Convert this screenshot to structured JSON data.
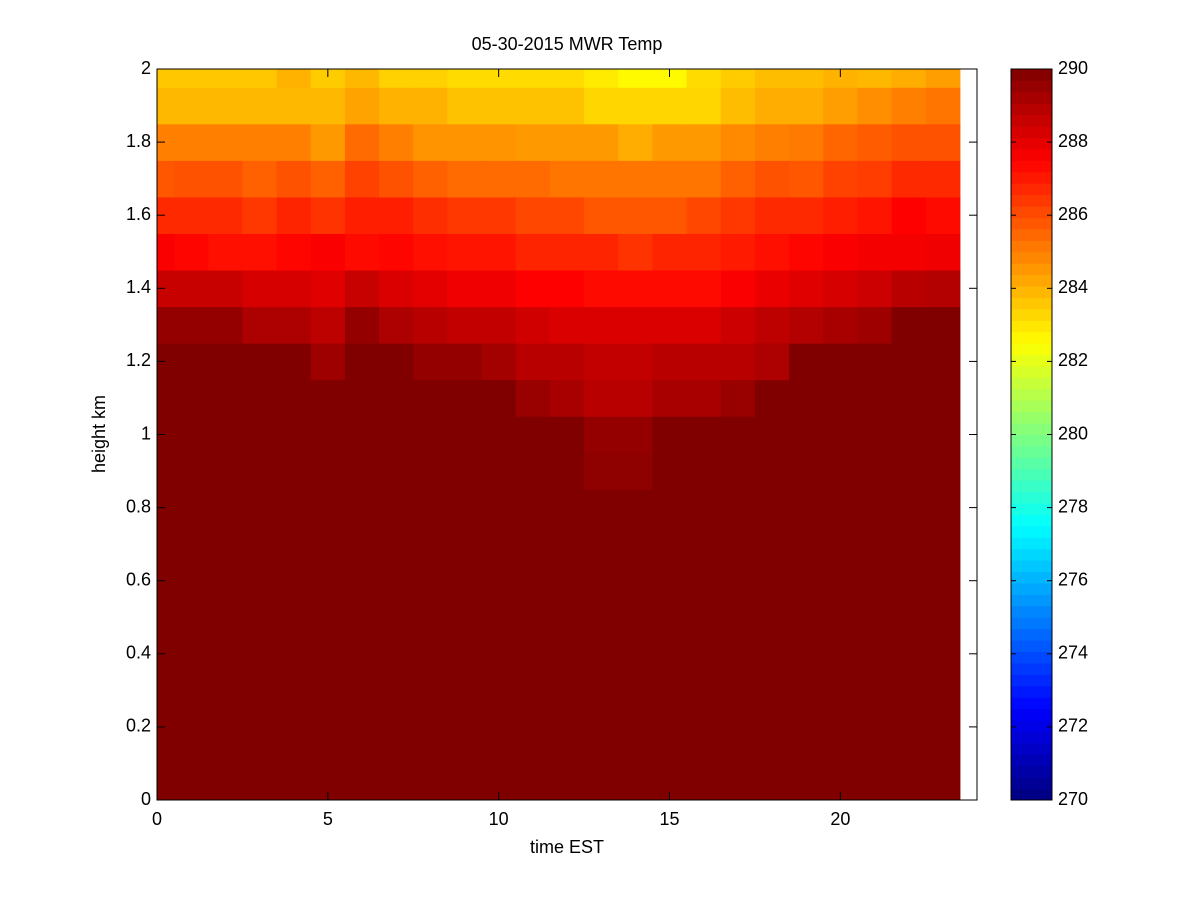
{
  "chart_data": {
    "type": "heatmap",
    "title": "05-30-2015 MWR Temp",
    "xlabel": "time EST",
    "ylabel": "height km",
    "colormap": "jet",
    "x": [
      0,
      1,
      2,
      3,
      4,
      5,
      6,
      7,
      8,
      9,
      10,
      11,
      12,
      13,
      14,
      15,
      16,
      17,
      18,
      19,
      20,
      21,
      22,
      23
    ],
    "y": [
      0,
      0.1,
      0.2,
      0.3,
      0.4,
      0.5,
      0.6,
      0.7,
      0.8,
      0.9,
      1.0,
      1.1,
      1.2,
      1.3,
      1.4,
      1.5,
      1.6,
      1.7,
      1.8,
      1.9,
      2.0
    ],
    "z": [
      [
        290,
        290,
        290,
        290,
        290,
        290,
        290,
        290,
        290,
        290,
        290,
        290,
        290,
        290,
        290,
        290,
        290,
        290,
        290,
        290,
        290,
        290,
        290,
        290
      ],
      [
        290,
        290,
        290,
        290,
        290,
        290,
        290,
        290,
        290,
        290,
        290,
        290,
        290,
        290,
        290,
        290,
        290,
        290,
        290,
        290,
        290,
        290,
        290,
        290
      ],
      [
        290,
        290,
        290,
        290,
        290,
        290,
        290,
        290,
        290,
        290,
        290,
        290,
        290,
        290,
        290,
        290,
        290,
        290,
        290,
        290,
        290,
        290,
        290,
        290
      ],
      [
        290,
        290,
        290,
        290,
        290,
        290,
        290,
        290,
        290,
        290,
        290,
        290,
        290,
        290,
        290,
        290,
        290,
        290,
        290,
        290,
        290,
        290,
        290,
        290
      ],
      [
        290,
        290,
        290,
        290,
        290,
        290,
        290,
        290,
        290,
        290,
        290,
        290,
        290,
        290,
        290,
        290,
        290,
        290,
        290,
        290,
        290,
        290,
        290,
        290
      ],
      [
        290,
        290,
        290,
        290,
        290,
        290,
        290,
        290,
        290,
        290,
        290,
        290,
        290,
        290,
        290,
        290,
        290,
        290,
        290,
        290,
        290,
        290,
        290,
        290
      ],
      [
        290,
        290,
        290,
        290,
        290,
        290,
        290,
        290,
        290,
        290,
        290,
        290,
        290,
        290,
        290,
        290,
        290,
        290,
        290,
        290,
        290,
        290,
        290,
        290
      ],
      [
        290,
        290,
        290,
        290,
        290,
        290,
        290,
        290,
        290,
        290,
        290,
        290,
        290,
        290,
        290,
        290,
        290,
        290,
        290,
        290,
        290,
        290,
        290,
        290
      ],
      [
        290,
        290,
        290,
        290,
        290,
        290,
        290,
        290,
        290,
        290,
        290,
        290,
        290,
        290,
        290,
        290,
        290,
        290,
        290,
        290,
        290,
        290,
        290,
        290
      ],
      [
        290,
        290,
        290,
        290,
        290,
        290,
        290,
        290,
        290,
        290,
        290,
        290,
        290,
        289.7,
        289.7,
        290,
        290,
        290,
        290,
        290,
        290,
        290,
        290,
        290
      ],
      [
        290,
        290,
        290,
        290,
        290,
        290,
        290,
        290,
        290,
        290,
        290,
        290,
        290,
        289.6,
        289.6,
        290,
        290,
        290,
        290,
        290,
        290,
        290,
        290,
        290
      ],
      [
        290,
        290,
        290,
        290,
        290,
        290,
        290,
        290,
        290,
        290,
        290,
        289.5,
        289.2,
        288.9,
        288.9,
        289.2,
        289.2,
        289.5,
        290,
        290,
        290,
        290,
        290,
        290
      ],
      [
        290,
        290,
        290,
        290,
        290,
        289.4,
        290,
        290,
        289.6,
        289.6,
        289.3,
        288.9,
        288.9,
        288.7,
        288.7,
        288.9,
        288.9,
        288.9,
        289.1,
        290,
        290,
        290,
        290,
        290
      ],
      [
        289.6,
        289.6,
        289.6,
        289.1,
        289.1,
        288.8,
        289.6,
        289.1,
        288.9,
        288.7,
        288.7,
        288.4,
        288.2,
        288.2,
        288.2,
        288.2,
        288.2,
        288.5,
        288.8,
        289.0,
        289.2,
        289.4,
        290,
        290
      ],
      [
        288.6,
        288.6,
        288.6,
        288.3,
        288.3,
        288.1,
        288.6,
        288.2,
        288.0,
        287.8,
        287.8,
        287.5,
        287.5,
        287.3,
        287.3,
        287.3,
        287.3,
        287.6,
        287.9,
        288.1,
        288.3,
        288.5,
        288.9,
        289.0
      ],
      [
        287.6,
        287.4,
        287.2,
        287.2,
        287.4,
        287.6,
        287.3,
        287.4,
        287.2,
        287.1,
        287.1,
        286.8,
        286.8,
        286.8,
        286.5,
        286.8,
        286.8,
        287.0,
        287.2,
        287.4,
        287.6,
        287.7,
        287.7,
        287.8
      ],
      [
        286.7,
        286.7,
        286.7,
        286.4,
        286.8,
        286.5,
        286.9,
        286.9,
        286.6,
        286.4,
        286.4,
        286.1,
        286.1,
        285.8,
        285.8,
        285.8,
        286.1,
        286.4,
        286.7,
        286.7,
        286.9,
        287.1,
        287.5,
        287.3
      ],
      [
        285.8,
        285.9,
        285.9,
        285.6,
        285.9,
        285.6,
        286.2,
        285.9,
        285.6,
        285.4,
        285.4,
        285.4,
        285.2,
        285.2,
        285.2,
        285.2,
        285.2,
        285.6,
        285.9,
        285.8,
        286.2,
        286.3,
        286.7,
        286.7
      ],
      [
        285.0,
        285.0,
        285.0,
        285.0,
        285.0,
        284.5,
        285.4,
        285.0,
        284.6,
        284.6,
        284.6,
        284.5,
        284.5,
        284.5,
        284.1,
        284.5,
        284.5,
        284.8,
        285.0,
        285.1,
        285.5,
        285.7,
        285.9,
        285.9
      ],
      [
        283.9,
        283.9,
        283.9,
        283.9,
        283.9,
        283.9,
        284.3,
        284.0,
        284.0,
        283.7,
        283.7,
        283.7,
        283.7,
        283.3,
        283.3,
        283.3,
        283.3,
        283.8,
        284.1,
        284.1,
        284.4,
        284.7,
        285.0,
        285.2
      ],
      [
        283.6,
        283.6,
        283.6,
        283.6,
        284.0,
        283.5,
        283.9,
        283.4,
        283.4,
        283.2,
        283.2,
        283.2,
        283.2,
        282.9,
        282.6,
        282.6,
        283.2,
        283.5,
        283.8,
        283.8,
        284.0,
        283.9,
        284.1,
        284.4
      ]
    ],
    "xlim": [
      0,
      24
    ],
    "xticks": [
      0,
      5,
      10,
      15,
      20
    ],
    "ylim": [
      0,
      2
    ],
    "yticks": [
      0,
      0.2,
      0.4,
      0.6,
      0.8,
      1,
      1.2,
      1.4,
      1.6,
      1.8,
      2
    ],
    "clim": [
      270,
      290
    ],
    "cticks": [
      270,
      272,
      274,
      276,
      278,
      280,
      282,
      284,
      286,
      288,
      290
    ]
  }
}
